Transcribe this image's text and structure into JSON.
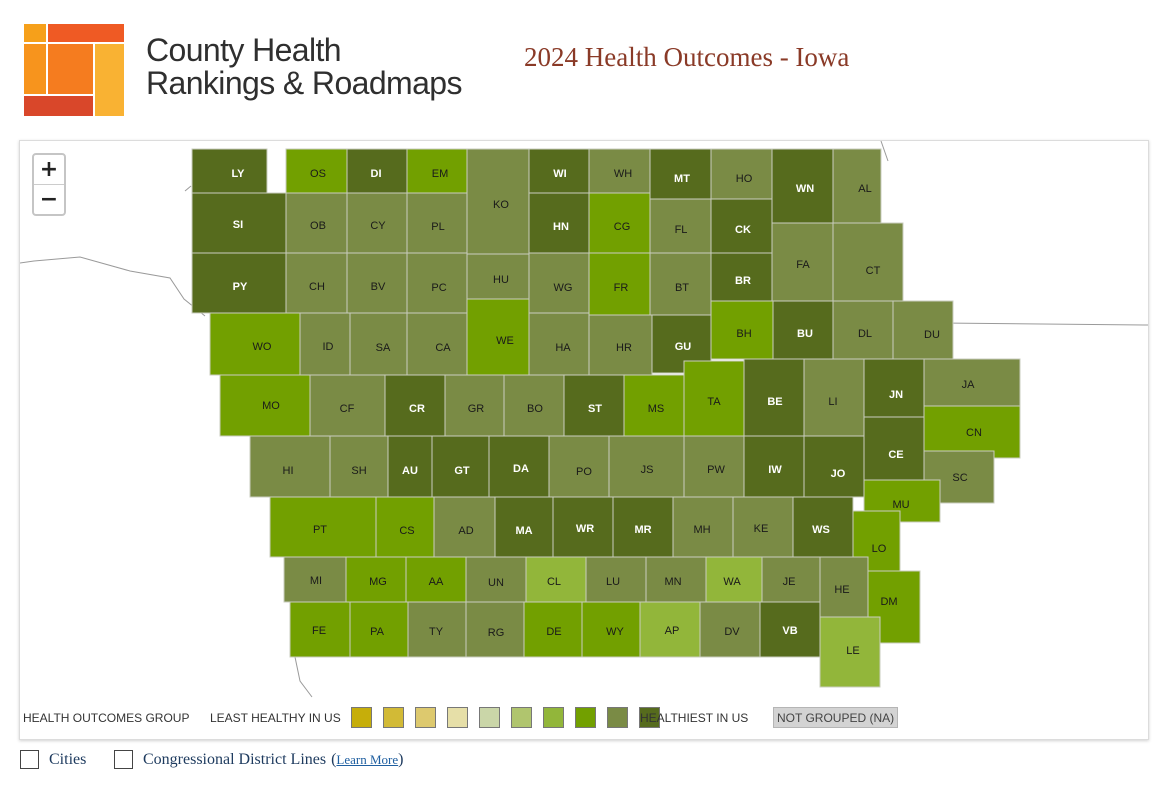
{
  "brand": {
    "line1": "County Health",
    "line2": "Rankings & Roadmaps"
  },
  "page_title": "2024 Health Outcomes - Iowa",
  "zoom": {
    "in_label": "+",
    "out_label": "−"
  },
  "legend": {
    "group_label": "HEALTH OUTCOMES GROUP",
    "least_label": "LEAST HEALTHY IN US",
    "healthiest_label": "HEALTHIEST IN US",
    "na_label": "NOT GROUPED (NA)",
    "colors": [
      "#c6ae0a",
      "#d2ba36",
      "#ddc96e",
      "#e6dfa8",
      "#cad6a8",
      "#b0c56e",
      "#92b63a",
      "#72a000",
      "#7a8b45",
      "#566b1d"
    ]
  },
  "options": {
    "cities_label": "Cities",
    "districts_label": "Congressional District Lines",
    "learn_more_label": "Learn More",
    "open_paren": "(",
    "close_paren": ")"
  },
  "map_data": {
    "counties": [
      {
        "code": "LY",
        "group": 10
      },
      {
        "code": "OS",
        "group": 8
      },
      {
        "code": "DI",
        "group": 10
      },
      {
        "code": "EM",
        "group": 8
      },
      {
        "code": "KO",
        "group": 9
      },
      {
        "code": "WI",
        "group": 10
      },
      {
        "code": "WH",
        "group": 9
      },
      {
        "code": "MT",
        "group": 10
      },
      {
        "code": "HO",
        "group": 9
      },
      {
        "code": "WN",
        "group": 10
      },
      {
        "code": "AL",
        "group": 9
      },
      {
        "code": "SI",
        "group": 10
      },
      {
        "code": "OB",
        "group": 9
      },
      {
        "code": "CY",
        "group": 9
      },
      {
        "code": "PL",
        "group": 9
      },
      {
        "code": "HN",
        "group": 10
      },
      {
        "code": "CG",
        "group": 8
      },
      {
        "code": "FL",
        "group": 9
      },
      {
        "code": "CK",
        "group": 10
      },
      {
        "code": "FA",
        "group": 9
      },
      {
        "code": "CT",
        "group": 9
      },
      {
        "code": "PY",
        "group": 10
      },
      {
        "code": "CH",
        "group": 9
      },
      {
        "code": "BV",
        "group": 9
      },
      {
        "code": "PC",
        "group": 9
      },
      {
        "code": "HU",
        "group": 9
      },
      {
        "code": "WG",
        "group": 9
      },
      {
        "code": "FR",
        "group": 8
      },
      {
        "code": "BT",
        "group": 9
      },
      {
        "code": "BR",
        "group": 10
      },
      {
        "code": "WO",
        "group": 8
      },
      {
        "code": "ID",
        "group": 9
      },
      {
        "code": "SA",
        "group": 9
      },
      {
        "code": "CA",
        "group": 9
      },
      {
        "code": "WE",
        "group": 8
      },
      {
        "code": "HA",
        "group": 9
      },
      {
        "code": "HR",
        "group": 9
      },
      {
        "code": "GU",
        "group": 10
      },
      {
        "code": "BH",
        "group": 8
      },
      {
        "code": "BU",
        "group": 10
      },
      {
        "code": "DL",
        "group": 9
      },
      {
        "code": "DU",
        "group": 9
      },
      {
        "code": "MO",
        "group": 8
      },
      {
        "code": "CF",
        "group": 9
      },
      {
        "code": "CR",
        "group": 10
      },
      {
        "code": "GR",
        "group": 9
      },
      {
        "code": "BO",
        "group": 9
      },
      {
        "code": "ST",
        "group": 10
      },
      {
        "code": "MS",
        "group": 8
      },
      {
        "code": "TA",
        "group": 8
      },
      {
        "code": "BE",
        "group": 10
      },
      {
        "code": "LI",
        "group": 9
      },
      {
        "code": "JN",
        "group": 10
      },
      {
        "code": "JA",
        "group": 9
      },
      {
        "code": "CN",
        "group": 8
      },
      {
        "code": "HI",
        "group": 9
      },
      {
        "code": "SH",
        "group": 9
      },
      {
        "code": "AU",
        "group": 10
      },
      {
        "code": "GT",
        "group": 10
      },
      {
        "code": "DA",
        "group": 10
      },
      {
        "code": "PO",
        "group": 9
      },
      {
        "code": "JS",
        "group": 9
      },
      {
        "code": "PW",
        "group": 9
      },
      {
        "code": "IW",
        "group": 10
      },
      {
        "code": "JO",
        "group": 10
      },
      {
        "code": "CE",
        "group": 10
      },
      {
        "code": "SC",
        "group": 9
      },
      {
        "code": "MU",
        "group": 8
      },
      {
        "code": "PT",
        "group": 8
      },
      {
        "code": "CS",
        "group": 8
      },
      {
        "code": "AD",
        "group": 9
      },
      {
        "code": "MA",
        "group": 10
      },
      {
        "code": "WR",
        "group": 10
      },
      {
        "code": "MR",
        "group": 10
      },
      {
        "code": "MH",
        "group": 9
      },
      {
        "code": "KE",
        "group": 9
      },
      {
        "code": "WS",
        "group": 10
      },
      {
        "code": "LO",
        "group": 8
      },
      {
        "code": "MI",
        "group": 9
      },
      {
        "code": "MG",
        "group": 8
      },
      {
        "code": "AA",
        "group": 8
      },
      {
        "code": "UN",
        "group": 9
      },
      {
        "code": "CL",
        "group": 7
      },
      {
        "code": "LU",
        "group": 9
      },
      {
        "code": "MN",
        "group": 9
      },
      {
        "code": "WA",
        "group": 7
      },
      {
        "code": "JE",
        "group": 9
      },
      {
        "code": "HE",
        "group": 9
      },
      {
        "code": "DM",
        "group": 8
      },
      {
        "code": "FE",
        "group": 8
      },
      {
        "code": "PA",
        "group": 8
      },
      {
        "code": "TY",
        "group": 9
      },
      {
        "code": "RG",
        "group": 9
      },
      {
        "code": "DE",
        "group": 8
      },
      {
        "code": "WY",
        "group": 8
      },
      {
        "code": "AP",
        "group": 7
      },
      {
        "code": "DV",
        "group": 9
      },
      {
        "code": "VB",
        "group": 10
      },
      {
        "code": "LE",
        "group": 7
      }
    ]
  }
}
